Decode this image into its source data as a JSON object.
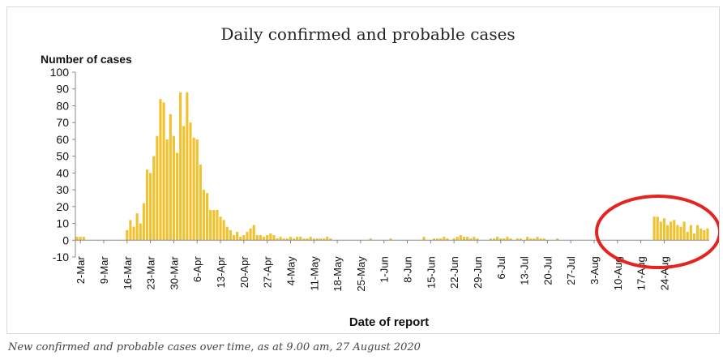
{
  "caption": "New confirmed and probable cases over time, as at 9.00 am, 27 August 2020",
  "colors": {
    "bar": "#f2c12e",
    "highlight": "#e52421",
    "axis": "#888888",
    "text": "#111111"
  },
  "chart_data": {
    "type": "bar",
    "title": "Daily confirmed and probable cases",
    "ylabel": "Number of cases",
    "xlabel": "Date of report",
    "ylim": [
      -10,
      100
    ],
    "yticks": [
      -10,
      0,
      10,
      20,
      30,
      40,
      50,
      60,
      70,
      80,
      90,
      100
    ],
    "grid": false,
    "legend": "none",
    "x_ticks": [
      "2-Mar",
      "9-Mar",
      "16-Mar",
      "23-Mar",
      "30-Mar",
      "6-Apr",
      "13-Apr",
      "20-Apr",
      "27-Apr",
      "4-May",
      "11-May",
      "18-May",
      "25-May",
      "1-Jun",
      "8-Jun",
      "15-Jun",
      "22-Jun",
      "29-Jun",
      "6-Jul",
      "13-Jul",
      "20-Jul",
      "27-Jul",
      "3-Aug",
      "10-Aug",
      "17-Aug",
      "24-Aug"
    ],
    "x_start": "2020-03-01",
    "values": [
      2,
      2,
      2,
      0,
      0,
      0,
      0,
      0,
      0,
      0,
      0,
      0,
      0,
      0,
      0,
      6,
      12,
      8,
      16,
      10,
      22,
      42,
      40,
      50,
      62,
      84,
      82,
      60,
      75,
      62,
      52,
      88,
      68,
      88,
      70,
      61,
      60,
      45,
      30,
      28,
      18,
      18,
      18,
      14,
      12,
      8,
      6,
      3,
      5,
      2,
      3,
      5,
      7,
      9,
      3,
      3,
      2,
      3,
      4,
      3,
      1,
      2,
      1,
      1,
      2,
      1,
      2,
      2,
      1,
      1,
      2,
      1,
      1,
      1,
      1,
      2,
      1,
      0,
      0,
      0,
      0,
      0,
      0,
      0,
      0,
      0,
      0,
      0,
      1,
      0,
      0,
      0,
      0,
      0,
      1,
      0,
      0,
      0,
      0,
      0,
      0,
      0,
      0,
      0,
      2,
      0,
      0,
      1,
      1,
      1,
      2,
      1,
      0,
      1,
      2,
      3,
      2,
      2,
      1,
      2,
      1,
      0,
      0,
      0,
      1,
      1,
      2,
      1,
      1,
      2,
      1,
      0,
      1,
      1,
      0,
      2,
      1,
      1,
      2,
      1,
      1,
      0,
      0,
      0,
      1,
      0,
      0,
      0,
      0,
      0,
      0,
      0,
      0,
      0,
      0,
      0,
      0,
      0,
      0,
      0,
      0,
      0,
      0,
      0,
      0,
      0,
      0,
      0,
      0,
      0,
      0,
      0,
      0,
      14,
      14,
      11,
      13,
      9,
      11,
      12,
      9,
      8,
      11,
      5,
      9,
      4,
      9,
      7,
      6,
      7
    ]
  }
}
